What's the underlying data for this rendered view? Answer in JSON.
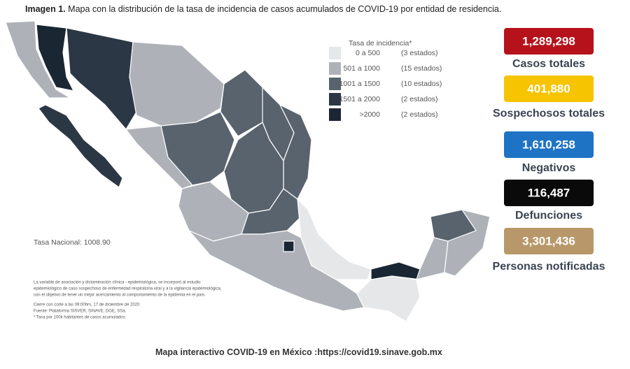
{
  "header": {
    "label": "Imagen 1.",
    "title": "Mapa con la distribución de la tasa de incidencia de casos acumulados de COVID-19 por entidad de residencia."
  },
  "legend": {
    "title": "Tasa de incidencia*",
    "items": [
      {
        "range": "0 a   500",
        "count": "(3 estados)",
        "color": "#e6e7e8"
      },
      {
        "range": "501 a  1000",
        "count": "(15 estados)",
        "color": "#aeb2b8"
      },
      {
        "range": "1001 a  1500",
        "count": "(10 estados)",
        "color": "#59636e"
      },
      {
        "range": "1501 a  2000",
        "count": "(2 estados)",
        "color": "#2b3744"
      },
      {
        "range": ">2000",
        "count": "(2 estados)",
        "color": "#1b2633"
      }
    ]
  },
  "national_rate": "Tasa Nacional: 1008.90",
  "notes": [
    "La variable de asociación y dictaminación clínica - epidemiológica, se incorporó al estudio",
    "epidemiológico de caso sospechoso de enfermedad respiratoria viral y a la vigilancia epidemiológica,",
    "con el objetivo de tener un mejor acercamiento al comportamiento de la epidemia en el país.",
    "Cierre con corte a las 09:00hrs, 17 de diciembre de 2020",
    "Fuente: Plataforma SISVER, SINAVE, DGE, SSa.",
    "* Tasa por 100k habitantes de casos acumulados."
  ],
  "stats": [
    {
      "value": "1,289,298",
      "label": "Casos totales",
      "color": "#b5121b"
    },
    {
      "value": "401,880",
      "label": "Sospechosos totales",
      "color": "#f6c400"
    },
    {
      "value": "1,610,258",
      "label": "Negativos",
      "color": "#1f73c4"
    },
    {
      "value": "116,487",
      "label": "Defunciones",
      "color": "#0a0a0a"
    },
    {
      "value": "3,301,436",
      "label": "Personas notificadas",
      "color": "#b8986a"
    }
  ],
  "footer": {
    "text": "Mapa interactivo COVID-19 en México :",
    "link": "https://covid19.sinave.gob.mx"
  }
}
